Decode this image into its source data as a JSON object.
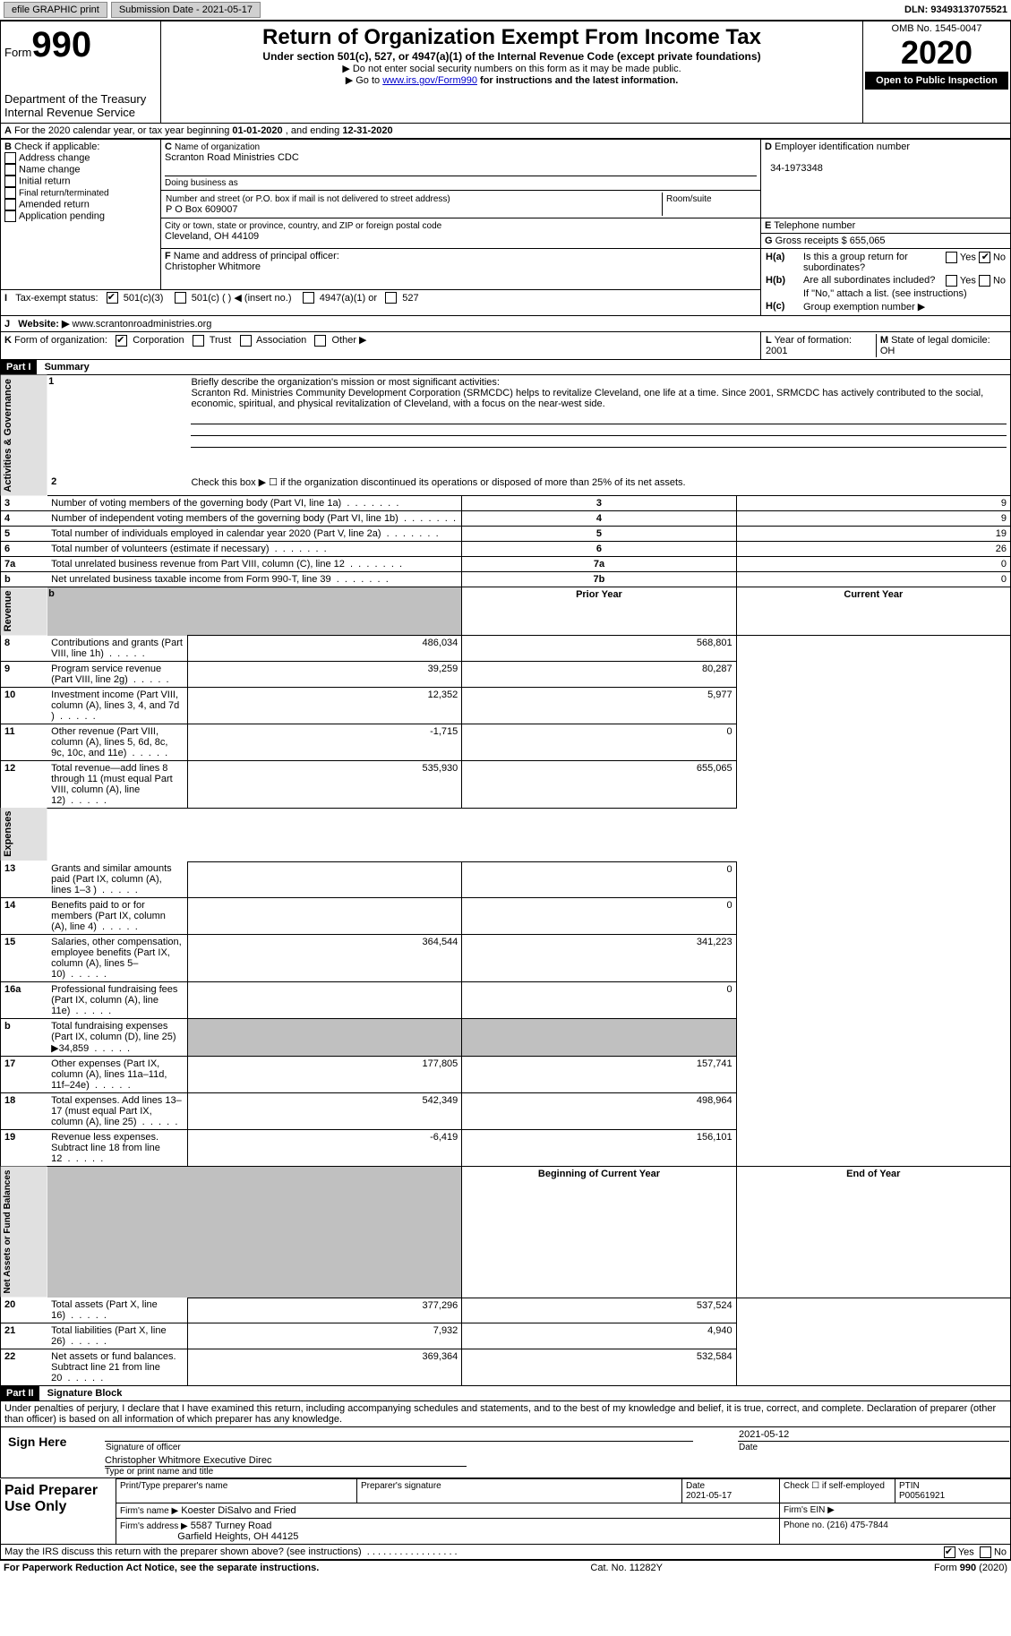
{
  "topbar": {
    "efile_btn": "efile GRAPHIC print",
    "submission_date": "Submission Date - 2021-05-17",
    "dln": "DLN: 93493137075521"
  },
  "header": {
    "form_label": "Form",
    "form_number": "990",
    "dept": "Department of the Treasury\nInternal Revenue Service",
    "main_title": "Return of Organization Exempt From Income Tax",
    "subtitle": "Under section 501(c), 527, or 4947(a)(1) of the Internal Revenue Code (except private foundations)",
    "note1": "Do not enter social security numbers on this form as it may be made public.",
    "note2_pre": "Go to ",
    "note2_link": "www.irs.gov/Form990",
    "note2_post": " for instructions and the latest information.",
    "omb": "OMB No. 1545-0047",
    "year": "2020",
    "inspection": "Open to Public Inspection"
  },
  "periodA": {
    "label_pre": "For the 2020 calendar year, or tax year beginning ",
    "begin": "01-01-2020",
    "mid": " , and ending ",
    "end": "12-31-2020"
  },
  "boxB": {
    "title": "Check if applicable:",
    "items": [
      "Address change",
      "Name change",
      "Initial return",
      "Final return/terminated",
      "Amended return",
      "Application pending"
    ]
  },
  "boxC": {
    "label": "Name of organization",
    "name": "Scranton Road Ministries CDC",
    "dba_label": "Doing business as",
    "street_label": "Number and street (or P.O. box if mail is not delivered to street address)",
    "street": "P O Box 609007",
    "room_label": "Room/suite",
    "city_label": "City or town, state or province, country, and ZIP or foreign postal code",
    "city": "Cleveland, OH  44109"
  },
  "boxD": {
    "label": "Employer identification number",
    "value": "34-1973348"
  },
  "boxE": {
    "label": "Telephone number",
    "value": ""
  },
  "boxG": {
    "label": "Gross receipts $",
    "value": "655,065"
  },
  "boxF": {
    "label": "Name and address of principal officer:",
    "value": "Christopher Whitmore"
  },
  "boxH": {
    "a_label": "Is this a group return for subordinates?",
    "b_label": "Are all subordinates included?",
    "yes": "Yes",
    "no": "No",
    "note": "If \"No,\" attach a list. (see instructions)",
    "c_label": "Group exemption number ▶"
  },
  "boxI": {
    "label": "Tax-exempt status:",
    "opts": [
      "501(c)(3)",
      "501(c) (  ) ◀ (insert no.)",
      "4947(a)(1) or",
      "527"
    ]
  },
  "boxJ": {
    "label": "Website: ▶",
    "value": "www.scrantonroadministries.org"
  },
  "boxK": {
    "label": "Form of organization:",
    "opts": [
      "Corporation",
      "Trust",
      "Association",
      "Other ▶"
    ]
  },
  "boxL": {
    "label": "Year of formation:",
    "value": "2001"
  },
  "boxM": {
    "label": "State of legal domicile:",
    "value": "OH"
  },
  "parts": {
    "p1": "Part I",
    "p1_title": "Summary",
    "p2": "Part II",
    "p2_title": "Signature Block"
  },
  "summary": {
    "line1_label": "Briefly describe the organization's mission or most significant activities:",
    "line1_text": "Scranton Rd. Ministries Community Development Corporation (SRMCDC) helps to revitalize Cleveland, one life at a time. Since 2001, SRMCDC has actively contributed to the social, economic, spiritual, and physical revitalization of Cleveland, with a focus on the near-west side.",
    "line2": "Check this box ▶ ☐ if the organization discontinued its operations or disposed of more than 25% of its net assets.",
    "prior_year": "Prior Year",
    "current_year": "Current Year",
    "beg_year": "Beginning of Current Year",
    "end_year": "End of Year",
    "rows_gov": [
      {
        "n": "3",
        "label": "Number of voting members of the governing body (Part VI, line 1a)",
        "box": "3",
        "val": "9"
      },
      {
        "n": "4",
        "label": "Number of independent voting members of the governing body (Part VI, line 1b)",
        "box": "4",
        "val": "9"
      },
      {
        "n": "5",
        "label": "Total number of individuals employed in calendar year 2020 (Part V, line 2a)",
        "box": "5",
        "val": "19"
      },
      {
        "n": "6",
        "label": "Total number of volunteers (estimate if necessary)",
        "box": "6",
        "val": "26"
      },
      {
        "n": "7a",
        "label": "Total unrelated business revenue from Part VIII, column (C), line 12",
        "box": "7a",
        "val": "0"
      },
      {
        "n": "b",
        "label": "Net unrelated business taxable income from Form 990-T, line 39",
        "box": "7b",
        "val": "0"
      }
    ],
    "rows_rev": [
      {
        "n": "8",
        "label": "Contributions and grants (Part VIII, line 1h)",
        "prior": "486,034",
        "curr": "568,801"
      },
      {
        "n": "9",
        "label": "Program service revenue (Part VIII, line 2g)",
        "prior": "39,259",
        "curr": "80,287"
      },
      {
        "n": "10",
        "label": "Investment income (Part VIII, column (A), lines 3, 4, and 7d )",
        "prior": "12,352",
        "curr": "5,977"
      },
      {
        "n": "11",
        "label": "Other revenue (Part VIII, column (A), lines 5, 6d, 8c, 9c, 10c, and 11e)",
        "prior": "-1,715",
        "curr": "0"
      },
      {
        "n": "12",
        "label": "Total revenue—add lines 8 through 11 (must equal Part VIII, column (A), line 12)",
        "prior": "535,930",
        "curr": "655,065"
      }
    ],
    "rows_exp": [
      {
        "n": "13",
        "label": "Grants and similar amounts paid (Part IX, column (A), lines 1–3 )",
        "prior": "",
        "curr": "0"
      },
      {
        "n": "14",
        "label": "Benefits paid to or for members (Part IX, column (A), line 4)",
        "prior": "",
        "curr": "0"
      },
      {
        "n": "15",
        "label": "Salaries, other compensation, employee benefits (Part IX, column (A), lines 5–10)",
        "prior": "364,544",
        "curr": "341,223"
      },
      {
        "n": "16a",
        "label": "Professional fundraising fees (Part IX, column (A), line 11e)",
        "prior": "",
        "curr": "0"
      },
      {
        "n": "b",
        "label": "Total fundraising expenses (Part IX, column (D), line 25) ▶34,859",
        "prior": "",
        "curr": "",
        "shade": true
      },
      {
        "n": "17",
        "label": "Other expenses (Part IX, column (A), lines 11a–11d, 11f–24e)",
        "prior": "177,805",
        "curr": "157,741"
      },
      {
        "n": "18",
        "label": "Total expenses. Add lines 13–17 (must equal Part IX, column (A), line 25)",
        "prior": "542,349",
        "curr": "498,964"
      },
      {
        "n": "19",
        "label": "Revenue less expenses. Subtract line 18 from line 12",
        "prior": "-6,419",
        "curr": "156,101"
      }
    ],
    "rows_net": [
      {
        "n": "20",
        "label": "Total assets (Part X, line 16)",
        "prior": "377,296",
        "curr": "537,524"
      },
      {
        "n": "21",
        "label": "Total liabilities (Part X, line 26)",
        "prior": "7,932",
        "curr": "4,940"
      },
      {
        "n": "22",
        "label": "Net assets or fund balances. Subtract line 21 from line 20",
        "prior": "369,364",
        "curr": "532,584"
      }
    ],
    "side_labels": {
      "gov": "Activities & Governance",
      "rev": "Revenue",
      "exp": "Expenses",
      "net": "Net Assets or Fund Balances"
    }
  },
  "sig": {
    "penalty": "Under penalties of perjury, I declare that I have examined this return, including accompanying schedules and statements, and to the best of my knowledge and belief, it is true, correct, and complete. Declaration of preparer (other than officer) is based on all information of which preparer has any knowledge.",
    "sign_here": "Sign Here",
    "sig_officer": "Signature of officer",
    "date": "Date",
    "sig_date": "2021-05-12",
    "typed_name": "Christopher Whitmore  Executive Direc",
    "typed_label": "Type or print name and title",
    "paid": "Paid Preparer Use Only",
    "prep_name_label": "Print/Type preparer's name",
    "prep_sig_label": "Preparer's signature",
    "prep_date_label": "Date",
    "prep_date": "2021-05-17",
    "check_self": "Check ☐ if self-employed",
    "ptin_label": "PTIN",
    "ptin": "P00561921",
    "firm_name_label": "Firm's name    ▶",
    "firm_name": "Koester DiSalvo and Fried",
    "firm_ein_label": "Firm's EIN ▶",
    "firm_addr_label": "Firm's address ▶",
    "firm_addr1": "5587 Turney Road",
    "firm_addr2": "Garfield Heights, OH  44125",
    "phone_label": "Phone no.",
    "phone": "(216) 475-7844",
    "discuss": "May the IRS discuss this return with the preparer shown above? (see instructions)",
    "yes": "Yes",
    "no": "No"
  },
  "footer": {
    "pra": "For Paperwork Reduction Act Notice, see the separate instructions.",
    "cat": "Cat. No. 11282Y",
    "form": "Form 990 (2020)"
  }
}
